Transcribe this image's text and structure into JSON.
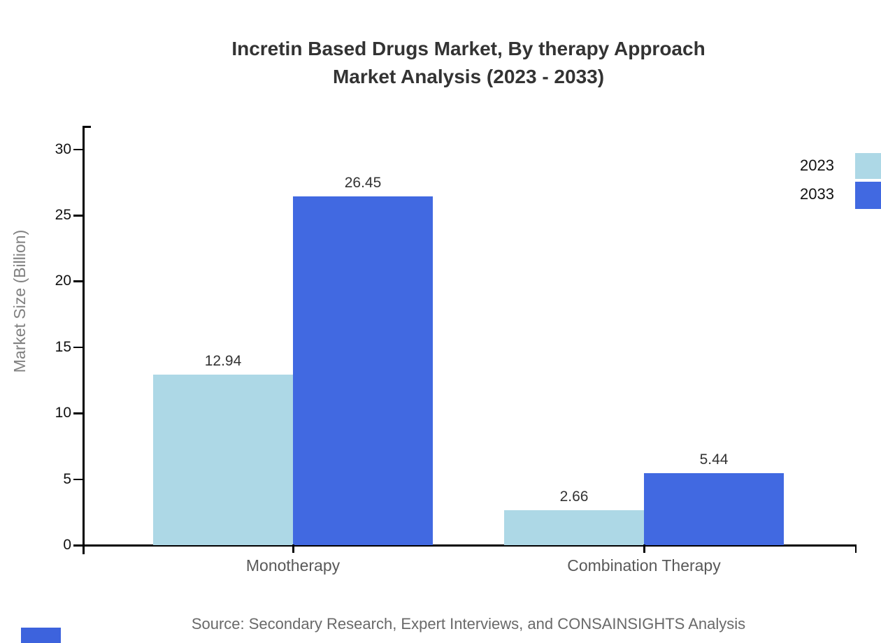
{
  "title": {
    "line1": "Incretin Based Drugs Market, By therapy Approach",
    "line2": "Market Analysis (2023 - 2033)"
  },
  "source": "Source: Secondary Research, Expert Interviews, and CONSAINSIGHTS Analysis",
  "legend": {
    "items": [
      {
        "label": "2023",
        "color": "#ADD8E6"
      },
      {
        "label": "2033",
        "color": "#4169E1"
      }
    ],
    "position": "top-right-outside"
  },
  "chart_data": {
    "type": "bar",
    "title": "Incretin Based Drugs Market, By therapy Approach Market Analysis (2023 - 2033)",
    "categories": [
      "Monotherapy",
      "Combination Therapy"
    ],
    "series": [
      {
        "name": "2023",
        "color": "#ADD8E6",
        "values": [
          12.94,
          2.66
        ]
      },
      {
        "name": "2033",
        "color": "#4169E1",
        "values": [
          26.45,
          5.44
        ]
      }
    ],
    "xlabel": "",
    "ylabel": "Market Size (Billion)",
    "ylim": [
      0,
      30
    ],
    "yticks": [
      0,
      5,
      10,
      15,
      20,
      25,
      30
    ],
    "grid": false,
    "value_labels": true,
    "value_label_texts": [
      [
        "12.94",
        "2.66"
      ],
      [
        "26.45",
        "5.44"
      ]
    ]
  },
  "colors": {
    "series_2023": "#ADD8E6",
    "series_2033": "#4169E1",
    "axis": "#000000",
    "title_text": "#333333",
    "tick_text": "#111111",
    "category_text": "#595959",
    "axis_title_text": "#808080",
    "source_text": "#696969",
    "logo_mark": "#3D63DD"
  }
}
